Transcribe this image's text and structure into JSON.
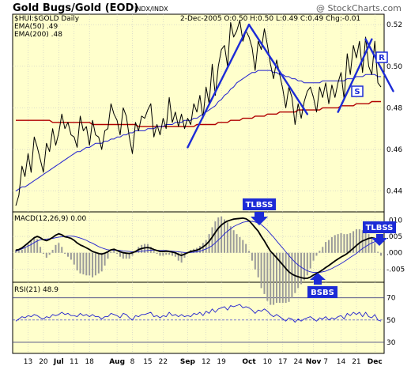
{
  "header": {
    "title": "Gold Bugs/Gold (EOD)",
    "exchange": "INDX/INDX",
    "copyright": "@ StockCharts.com"
  },
  "legend": {
    "symbol": "$HUI:$GOLD Daily",
    "ohlc": "2-Dec-2005 O:0.50 H:0.50 L:0.49 C:0.49 Chg:-0.01",
    "ema50": "EMA(50) .49",
    "ema200": "EMA(200) .48",
    "macd": "MACD(12,26,9) 0.00",
    "rsi": "RSI(21) 48.9"
  },
  "colors": {
    "background": "#ffffcc",
    "price": "#000000",
    "ema50": "#2020d0",
    "ema200": "#b00000",
    "trendline": "#1c2bd6",
    "histogram": "#9a9a9a",
    "arrow": "#1c2bd6"
  },
  "annotations": {
    "tlbss1": "TLBSS",
    "tlbss2": "TLBSS",
    "bsbs": "BSBS",
    "r": "R",
    "s": "S"
  },
  "chart_data": [
    {
      "type": "line",
      "panel": "price",
      "y_axis_ticks": [
        "0.44",
        "0.46",
        "0.48",
        "0.50",
        "0.52"
      ],
      "ylim": [
        0.43,
        0.525
      ],
      "grid": true,
      "x_ticks": [
        {
          "label": "13",
          "i": 4
        },
        {
          "label": "20",
          "i": 9
        },
        {
          "label": "Jul",
          "i": 14,
          "bold": true
        },
        {
          "label": "11",
          "i": 19
        },
        {
          "label": "18",
          "i": 24
        },
        {
          "label": "Aug",
          "i": 33,
          "bold": true
        },
        {
          "label": "8",
          "i": 38
        },
        {
          "label": "15",
          "i": 43
        },
        {
          "label": "22",
          "i": 48
        },
        {
          "label": "Sep",
          "i": 56,
          "bold": true
        },
        {
          "label": "12",
          "i": 62
        },
        {
          "label": "19",
          "i": 67
        },
        {
          "label": "Oct",
          "i": 76,
          "bold": true
        },
        {
          "label": "10",
          "i": 82
        },
        {
          "label": "17",
          "i": 87
        },
        {
          "label": "24",
          "i": 92
        },
        {
          "label": "Nov",
          "i": 97,
          "bold": true
        },
        {
          "label": "7",
          "i": 101
        },
        {
          "label": "14",
          "i": 106
        },
        {
          "label": "21",
          "i": 111
        },
        {
          "label": "Dec",
          "i": 117,
          "bold": true
        }
      ],
      "series": [
        {
          "name": "$HUI:$GOLD Daily",
          "values": [
            0.433,
            0.438,
            0.452,
            0.447,
            0.458,
            0.449,
            0.466,
            0.461,
            0.455,
            0.449,
            0.463,
            0.459,
            0.47,
            0.462,
            0.468,
            0.477,
            0.47,
            0.473,
            0.467,
            0.466,
            0.461,
            0.476,
            0.469,
            0.471,
            0.462,
            0.474,
            0.467,
            0.466,
            0.46,
            0.469,
            0.47,
            0.482,
            0.477,
            0.474,
            0.467,
            0.48,
            0.476,
            0.466,
            0.458,
            0.473,
            0.469,
            0.476,
            0.475,
            0.479,
            0.482,
            0.466,
            0.472,
            0.467,
            0.475,
            0.47,
            0.485,
            0.473,
            0.478,
            0.471,
            0.477,
            0.47,
            0.475,
            0.472,
            0.482,
            0.478,
            0.486,
            0.475,
            0.49,
            0.482,
            0.501,
            0.486,
            0.5,
            0.508,
            0.51,
            0.5,
            0.521,
            0.514,
            0.517,
            0.522,
            0.512,
            0.517,
            0.514,
            0.509,
            0.498,
            0.512,
            0.508,
            0.518,
            0.51,
            0.501,
            0.494,
            0.503,
            0.496,
            0.489,
            0.48,
            0.49,
            0.485,
            0.472,
            0.482,
            0.475,
            0.483,
            0.488,
            0.49,
            0.485,
            0.478,
            0.49,
            0.485,
            0.492,
            0.482,
            0.491,
            0.485,
            0.492,
            0.497,
            0.484,
            0.506,
            0.496,
            0.51,
            0.504,
            0.512,
            0.497,
            0.514,
            0.5,
            0.496,
            0.512,
            0.492,
            0.49
          ]
        },
        {
          "name": "EMA(50) .49",
          "values": [
            0.44,
            0.441,
            0.442,
            0.442,
            0.443,
            0.444,
            0.445,
            0.446,
            0.447,
            0.448,
            0.449,
            0.45,
            0.451,
            0.452,
            0.453,
            0.454,
            0.455,
            0.456,
            0.457,
            0.458,
            0.459,
            0.459,
            0.46,
            0.461,
            0.461,
            0.462,
            0.463,
            0.463,
            0.463,
            0.464,
            0.464,
            0.465,
            0.465,
            0.466,
            0.466,
            0.467,
            0.467,
            0.468,
            0.468,
            0.469,
            0.469,
            0.469,
            0.469,
            0.47,
            0.47,
            0.47,
            0.471,
            0.471,
            0.471,
            0.472,
            0.472,
            0.472,
            0.473,
            0.473,
            0.473,
            0.474,
            0.474,
            0.474,
            0.475,
            0.475,
            0.476,
            0.477,
            0.478,
            0.479,
            0.48,
            0.481,
            0.483,
            0.484,
            0.486,
            0.487,
            0.489,
            0.49,
            0.492,
            0.493,
            0.494,
            0.495,
            0.496,
            0.497,
            0.497,
            0.498,
            0.498,
            0.498,
            0.498,
            0.498,
            0.497,
            0.497,
            0.496,
            0.496,
            0.495,
            0.495,
            0.494,
            0.494,
            0.493,
            0.493,
            0.492,
            0.492,
            0.492,
            0.492,
            0.492,
            0.492,
            0.493,
            0.493,
            0.493,
            0.493,
            0.493,
            0.493,
            0.493,
            0.493,
            0.494,
            0.494,
            0.494,
            0.495,
            0.495,
            0.495,
            0.496,
            0.496,
            0.496,
            0.496,
            0.495,
            0.495
          ]
        },
        {
          "name": "EMA(200) .48",
          "values": [
            0.474,
            0.474,
            0.474,
            0.474,
            0.474,
            0.474,
            0.474,
            0.474,
            0.474,
            0.474,
            0.474,
            0.474,
            0.473,
            0.473,
            0.473,
            0.473,
            0.473,
            0.473,
            0.473,
            0.473,
            0.473,
            0.473,
            0.473,
            0.473,
            0.473,
            0.472,
            0.472,
            0.472,
            0.472,
            0.472,
            0.472,
            0.472,
            0.472,
            0.472,
            0.472,
            0.472,
            0.472,
            0.472,
            0.472,
            0.472,
            0.471,
            0.471,
            0.471,
            0.471,
            0.471,
            0.471,
            0.471,
            0.471,
            0.471,
            0.471,
            0.471,
            0.471,
            0.471,
            0.471,
            0.471,
            0.471,
            0.471,
            0.471,
            0.471,
            0.472,
            0.472,
            0.472,
            0.472,
            0.472,
            0.472,
            0.472,
            0.473,
            0.473,
            0.473,
            0.473,
            0.474,
            0.474,
            0.474,
            0.474,
            0.475,
            0.475,
            0.475,
            0.475,
            0.476,
            0.476,
            0.476,
            0.476,
            0.477,
            0.477,
            0.477,
            0.477,
            0.478,
            0.478,
            0.478,
            0.478,
            0.478,
            0.478,
            0.479,
            0.479,
            0.479,
            0.479,
            0.479,
            0.479,
            0.479,
            0.479,
            0.48,
            0.48,
            0.48,
            0.48,
            0.48,
            0.48,
            0.481,
            0.481,
            0.481,
            0.481,
            0.481,
            0.482,
            0.482,
            0.482,
            0.482,
            0.482,
            0.483,
            0.483,
            0.483,
            0.483
          ]
        }
      ],
      "trendlines": [
        {
          "x1": 56,
          "y1": 0.461,
          "x2": 76,
          "y2": 0.52
        },
        {
          "x1": 76,
          "y1": 0.52,
          "x2": 95,
          "y2": 0.477
        },
        {
          "x1": 105,
          "y1": 0.478,
          "x2": 112,
          "y2": 0.5
        },
        {
          "x1": 112,
          "y1": 0.5,
          "x2": 116,
          "y2": 0.513
        },
        {
          "x1": 114,
          "y1": 0.513,
          "x2": 123,
          "y2": 0.488
        }
      ]
    },
    {
      "type": "line",
      "panel": "macd",
      "y_axis_ticks": [
        ".010",
        ".005",
        ".000",
        "-.005"
      ],
      "ylim": [
        -0.009,
        0.0125
      ],
      "series": [
        {
          "name": "MACD(12,26,9) 0.00",
          "values": [
            0.0008,
            0.001,
            0.0015,
            0.0022,
            0.003,
            0.0038,
            0.0046,
            0.005,
            0.0046,
            0.004,
            0.0037,
            0.0041,
            0.0047,
            0.0054,
            0.0058,
            0.0055,
            0.0049,
            0.0047,
            0.0044,
            0.0038,
            0.003,
            0.0024,
            0.002,
            0.0015,
            0.001,
            0.0004,
            0.0001,
            -0.0002,
            -0.0004,
            -0.0001,
            0.0003,
            0.0009,
            0.0011,
            0.0007,
            0.0003,
            0.0,
            -0.0001,
            -0.0002,
            0.0,
            0.0004,
            0.001,
            0.0013,
            0.0015,
            0.0016,
            0.0014,
            0.001,
            0.0007,
            0.0004,
            0.0004,
            0.0005,
            0.0004,
            0.0002,
            0.0,
            -0.0005,
            -0.0008,
            -0.0004,
            0.0,
            0.0004,
            0.0006,
            0.0008,
            0.0012,
            0.0018,
            0.0025,
            0.0035,
            0.0048,
            0.0062,
            0.0075,
            0.0085,
            0.0092,
            0.0097,
            0.01,
            0.0103,
            0.0104,
            0.0105,
            0.0106,
            0.0104,
            0.0098,
            0.0088,
            0.0077,
            0.0066,
            0.005,
            0.0036,
            0.002,
            0.0005,
            -0.0005,
            -0.0015,
            -0.0026,
            -0.0037,
            -0.0048,
            -0.0058,
            -0.0065,
            -0.007,
            -0.0073,
            -0.0076,
            -0.0078,
            -0.0078,
            -0.0074,
            -0.0068,
            -0.0063,
            -0.0058,
            -0.0052,
            -0.0045,
            -0.0039,
            -0.0032,
            -0.0025,
            -0.0019,
            -0.0013,
            -0.0008,
            -0.0002,
            0.0006,
            0.0014,
            0.0022,
            0.003,
            0.0036,
            0.004,
            0.0044,
            0.0046,
            0.0044,
            0.0035,
            0.003
          ]
        },
        {
          "name": "Signal",
          "values": [
            0.0005,
            0.0008,
            0.0012,
            0.0016,
            0.0021,
            0.0025,
            0.0031,
            0.0036,
            0.004,
            0.0041,
            0.0042,
            0.0043,
            0.0044,
            0.0046,
            0.0048,
            0.0049,
            0.005,
            0.0051,
            0.0051,
            0.005,
            0.0048,
            0.0045,
            0.0042,
            0.0038,
            0.0033,
            0.0029,
            0.0024,
            0.0019,
            0.0015,
            0.0012,
            0.0009,
            0.0008,
            0.0008,
            0.0008,
            0.0007,
            0.0006,
            0.0005,
            0.0004,
            0.0003,
            0.0003,
            0.0004,
            0.0005,
            0.0006,
            0.0007,
            0.0008,
            0.0008,
            0.0008,
            0.0007,
            0.0007,
            0.0007,
            0.0006,
            0.0005,
            0.0004,
            0.0003,
            0.0002,
            0.0001,
            0.0,
            0.0001,
            0.0002,
            0.0003,
            0.0005,
            0.0008,
            0.0012,
            0.0016,
            0.0022,
            0.003,
            0.0039,
            0.0048,
            0.0058,
            0.0066,
            0.0073,
            0.008,
            0.0085,
            0.0089,
            0.0093,
            0.0095,
            0.0096,
            0.0096,
            0.0094,
            0.0091,
            0.0086,
            0.0078,
            0.0069,
            0.0058,
            0.0048,
            0.0036,
            0.0025,
            0.0014,
            0.0003,
            -0.0008,
            -0.0019,
            -0.0029,
            -0.0037,
            -0.0044,
            -0.005,
            -0.0055,
            -0.0058,
            -0.006,
            -0.006,
            -0.006,
            -0.0058,
            -0.0056,
            -0.0052,
            -0.0048,
            -0.0043,
            -0.0038,
            -0.0033,
            -0.0027,
            -0.0021,
            -0.0014,
            -0.0008,
            -0.0002,
            0.0006,
            0.0013,
            0.0019,
            0.0025,
            0.003,
            0.0034,
            0.0034,
            0.0033
          ]
        }
      ]
    },
    {
      "type": "line",
      "panel": "rsi",
      "y_axis_ticks": [
        "70",
        "50",
        "30"
      ],
      "ylim": [
        20,
        84
      ],
      "series": [
        {
          "name": "RSI(21) 48.9",
          "values": [
            49,
            51,
            53,
            52,
            54,
            53,
            55,
            54,
            52,
            51,
            53,
            52,
            55,
            54,
            55,
            57,
            55,
            56,
            54,
            54,
            53,
            56,
            54,
            55,
            53,
            55,
            53,
            53,
            51,
            53,
            53,
            56,
            55,
            54,
            52,
            56,
            55,
            52,
            50,
            54,
            53,
            55,
            55,
            56,
            57,
            53,
            54,
            52,
            54,
            53,
            57,
            54,
            55,
            53,
            55,
            53,
            54,
            53,
            56,
            55,
            57,
            54,
            58,
            56,
            60,
            57,
            60,
            61,
            62,
            59,
            63,
            62,
            63,
            64,
            61,
            62,
            61,
            59,
            56,
            59,
            58,
            60,
            58,
            55,
            53,
            55,
            53,
            51,
            49,
            52,
            51,
            48,
            51,
            49,
            51,
            52,
            53,
            51,
            49,
            52,
            51,
            53,
            50,
            52,
            51,
            53,
            54,
            51,
            56,
            54,
            57,
            55,
            57,
            53,
            57,
            53,
            52,
            55,
            50,
            49
          ]
        }
      ]
    }
  ]
}
